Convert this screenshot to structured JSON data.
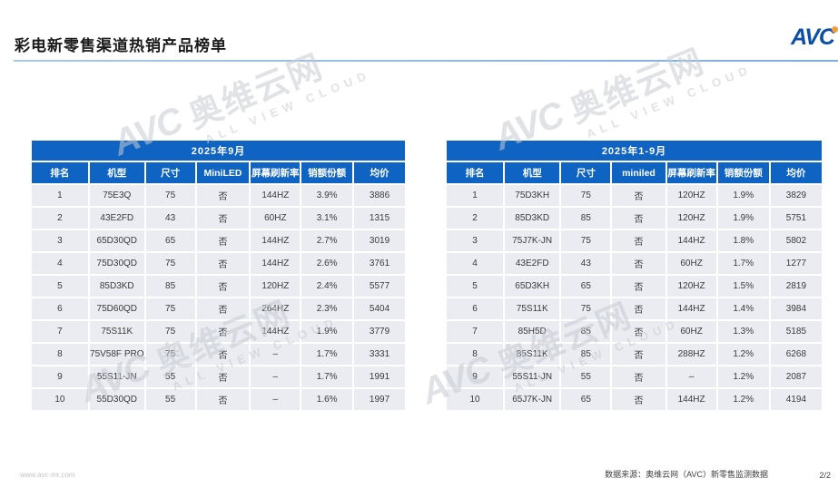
{
  "page": {
    "title": "彩电新零售渠道热销产品榜单",
    "logo_text": "AVC",
    "footer_url": "www.avc-mr.com",
    "footer_source": "数据来源：奥维云网（AVC）新零售监测数据",
    "page_number": "2/2"
  },
  "colors": {
    "header_blue": "#0f63c2",
    "row_bg": "#eaecf2",
    "logo_blue": "#0a4fa8",
    "logo_dot_orange": "#f29b38",
    "title_rule_blue": "#7fb0dc"
  },
  "watermark": {
    "brand": "AVC",
    "cn": "奥维云网",
    "en": "ALL VIEW CLOUD"
  },
  "tables": [
    {
      "period": "2025年9月",
      "columns": [
        "排名",
        "机型",
        "尺寸",
        "MiniLED",
        "屏幕刷新率",
        "销额份额",
        "均价"
      ],
      "rows": [
        [
          "1",
          "75E3Q",
          "75",
          "否",
          "144HZ",
          "3.9%",
          "3886"
        ],
        [
          "2",
          "43E2FD",
          "43",
          "否",
          "60HZ",
          "3.1%",
          "1315"
        ],
        [
          "3",
          "65D30QD",
          "65",
          "否",
          "144HZ",
          "2.7%",
          "3019"
        ],
        [
          "4",
          "75D30QD",
          "75",
          "否",
          "144HZ",
          "2.6%",
          "3761"
        ],
        [
          "5",
          "85D3KD",
          "85",
          "否",
          "120HZ",
          "2.4%",
          "5577"
        ],
        [
          "6",
          "75D60QD",
          "75",
          "否",
          "264HZ",
          "2.3%",
          "5404"
        ],
        [
          "7",
          "75S11K",
          "75",
          "否",
          "144HZ",
          "1.9%",
          "3779"
        ],
        [
          "8",
          "75V58F PRO",
          "75",
          "否",
          "–",
          "1.7%",
          "3331"
        ],
        [
          "9",
          "55S11-JN",
          "55",
          "否",
          "–",
          "1.7%",
          "1991"
        ],
        [
          "10",
          "55D30QD",
          "55",
          "否",
          "–",
          "1.6%",
          "1997"
        ]
      ]
    },
    {
      "period": "2025年1-9月",
      "columns": [
        "排名",
        "机型",
        "尺寸",
        "miniled",
        "屏幕刷新率",
        "销额份额",
        "均价"
      ],
      "rows": [
        [
          "1",
          "75D3KH",
          "75",
          "否",
          "120HZ",
          "1.9%",
          "3829"
        ],
        [
          "2",
          "85D3KD",
          "85",
          "否",
          "120HZ",
          "1.9%",
          "5751"
        ],
        [
          "3",
          "75J7K-JN",
          "75",
          "否",
          "144HZ",
          "1.8%",
          "5802"
        ],
        [
          "4",
          "43E2FD",
          "43",
          "否",
          "60HZ",
          "1.7%",
          "1277"
        ],
        [
          "5",
          "65D3KH",
          "65",
          "否",
          "120HZ",
          "1.5%",
          "2819"
        ],
        [
          "6",
          "75S11K",
          "75",
          "否",
          "144HZ",
          "1.4%",
          "3984"
        ],
        [
          "7",
          "85H5D",
          "85",
          "否",
          "60HZ",
          "1.3%",
          "5185"
        ],
        [
          "8",
          "85S11K",
          "85",
          "否",
          "288HZ",
          "1.2%",
          "6268"
        ],
        [
          "9",
          "55S11-JN",
          "55",
          "否",
          "–",
          "1.2%",
          "2087"
        ],
        [
          "10",
          "65J7K-JN",
          "65",
          "否",
          "144HZ",
          "1.2%",
          "4194"
        ]
      ]
    }
  ]
}
